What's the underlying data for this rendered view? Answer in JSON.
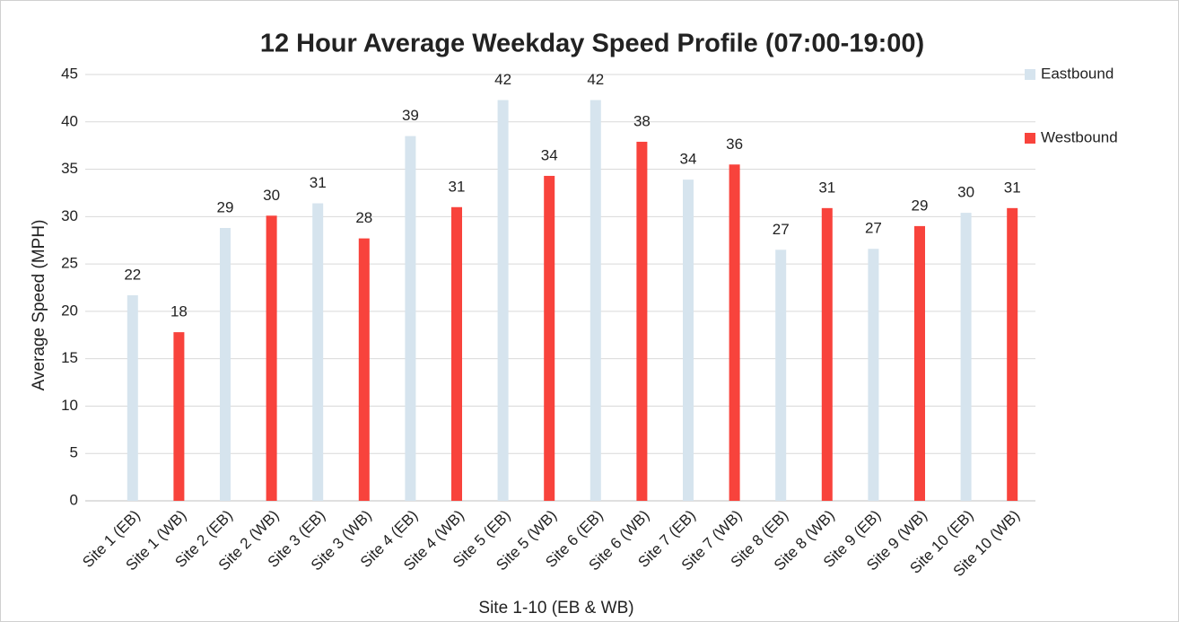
{
  "chart_data": {
    "type": "bar",
    "title": "12 Hour Average Weekday Speed Profile (07:00-19:00)",
    "x_label": "Site 1-10 (EB & WB)",
    "y_label": "Average Speed (MPH)",
    "categories": [
      "Site 1 (EB)",
      "Site 1 (WB)",
      "Site 2 (EB)",
      "Site 2 (WB)",
      "Site 3 (EB)",
      "Site 3 (WB)",
      "Site 4 (EB)",
      "Site 4 (WB)",
      "Site 5 (EB)",
      "Site 5 (WB)",
      "Site 6 (EB)",
      "Site 6 (WB)",
      "Site 7 (EB)",
      "Site 7 (WB)",
      "Site 8 (EB)",
      "Site 8 (WB)",
      "Site 9 (EB)",
      "Site 9 (WB)",
      "Site 10 (EB)",
      "Site 10 (WB)"
    ],
    "series": [
      {
        "name": "Eastbound",
        "color": "#d6e4ee",
        "values": [
          21.7,
          null,
          28.8,
          null,
          31.4,
          null,
          38.5,
          null,
          42.3,
          null,
          42.3,
          null,
          33.9,
          null,
          26.5,
          null,
          26.6,
          null,
          30.4,
          null
        ],
        "value_labels": [
          "22",
          null,
          "29",
          null,
          "31",
          null,
          "39",
          null,
          "42",
          null,
          "42",
          null,
          "34",
          null,
          "27",
          null,
          "27",
          null,
          "30",
          null
        ]
      },
      {
        "name": "Westbound",
        "color": "#f8433c",
        "values": [
          null,
          17.8,
          null,
          30.1,
          null,
          27.7,
          null,
          31.0,
          null,
          34.3,
          null,
          37.9,
          null,
          35.5,
          null,
          30.9,
          null,
          29.0,
          null,
          30.9
        ],
        "value_labels": [
          null,
          "18",
          null,
          "30",
          null,
          "28",
          null,
          "31",
          null,
          "34",
          null,
          "38",
          null,
          "36",
          null,
          "31",
          null,
          "29",
          null,
          "31"
        ]
      }
    ],
    "ylim": [
      0,
      45
    ],
    "yticks": [
      0,
      5,
      10,
      15,
      20,
      25,
      30,
      35,
      40,
      45
    ],
    "grid": true,
    "legend": "right"
  }
}
